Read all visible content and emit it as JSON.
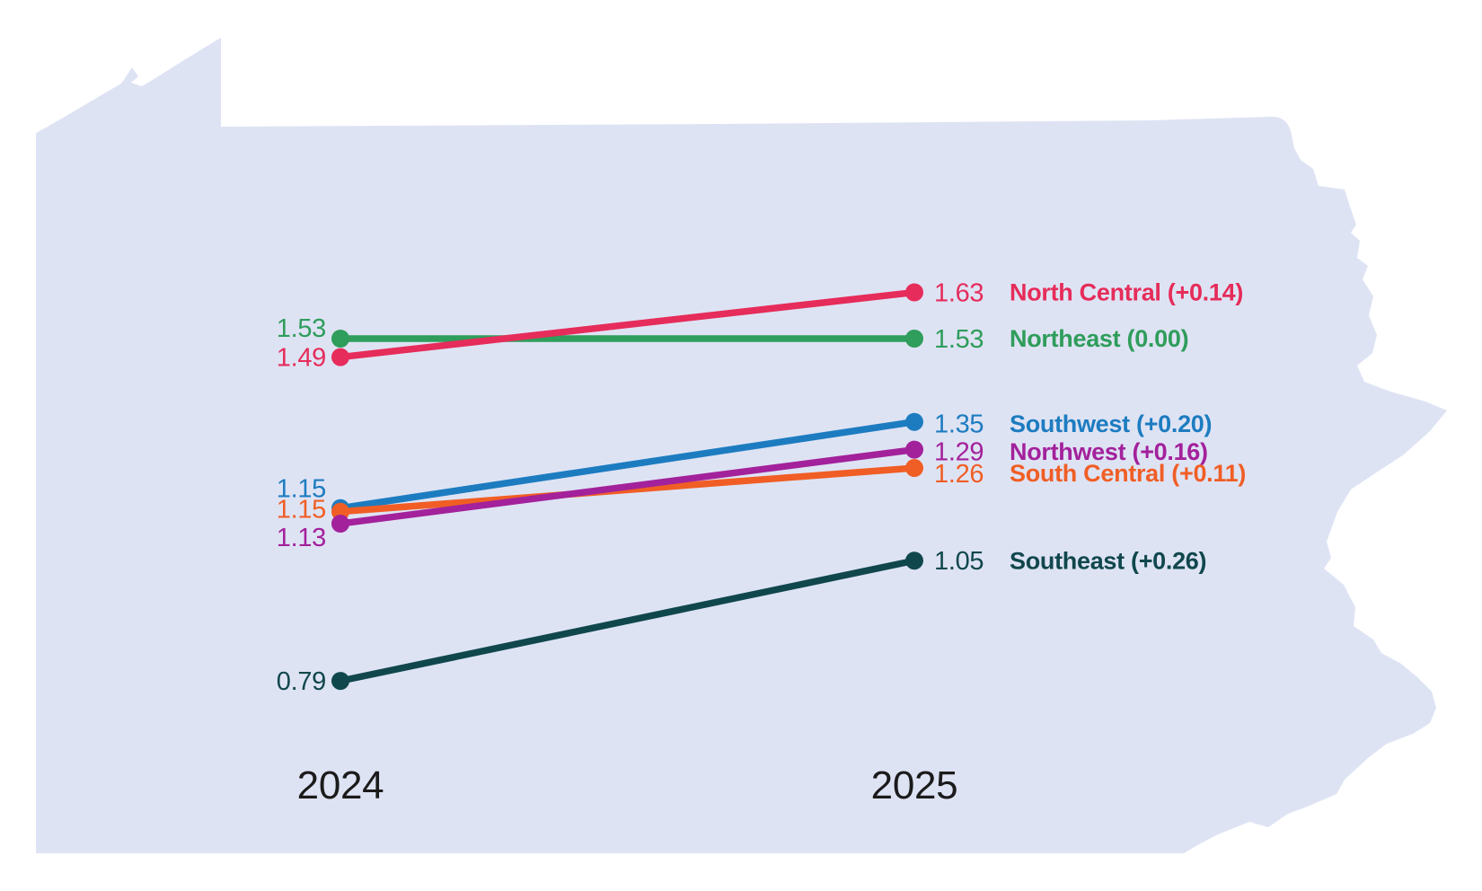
{
  "map": {
    "shape": "pennsylvania-state-outline",
    "fill": "#dee3f4"
  },
  "chart_data": {
    "type": "line",
    "subtype": "slopegraph",
    "x": [
      "2024",
      "2025"
    ],
    "axis_color": "#1b1b1b",
    "grid": false,
    "legend_position": "inline-right",
    "ylim": [
      0.79,
      1.63
    ],
    "series": [
      {
        "name": "North Central",
        "label": "North Central (+0.14)",
        "change": "+0.14",
        "values": [
          1.49,
          1.63
        ],
        "values_text": [
          "1.49",
          "1.63"
        ],
        "color": "#e62c5a"
      },
      {
        "name": "Northeast",
        "label": "Northeast (0.00)",
        "change": "0.00",
        "values": [
          1.53,
          1.53
        ],
        "values_text": [
          "1.53",
          "1.53"
        ],
        "color": "#2f9d5b"
      },
      {
        "name": "Southwest",
        "label": "Southwest (+0.20)",
        "change": "+0.20",
        "values": [
          1.15,
          1.35
        ],
        "values_text": [
          "1.15",
          "1.35"
        ],
        "color": "#1d7cc0"
      },
      {
        "name": "Northwest",
        "label": "Northwest (+0.16)",
        "change": "+0.16",
        "values": [
          1.13,
          1.29
        ],
        "values_text": [
          "1.13",
          "1.29"
        ],
        "color": "#a3219b"
      },
      {
        "name": "South Central",
        "label": "South Central (+0.11)",
        "change": "+0.11",
        "values": [
          1.15,
          1.26
        ],
        "values_text": [
          "1.15",
          "1.26"
        ],
        "color": "#f05e25"
      },
      {
        "name": "Southeast",
        "label": "Southeast (+0.26)",
        "change": "+0.26",
        "values": [
          0.79,
          1.05
        ],
        "values_text": [
          "0.79",
          "1.05"
        ],
        "color": "#10474d"
      }
    ]
  }
}
